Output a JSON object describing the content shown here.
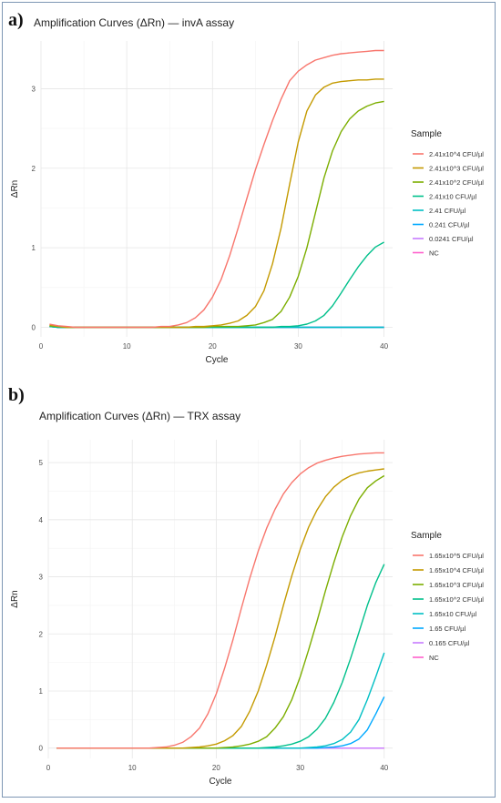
{
  "panels": [
    {
      "letter": "a)"
    },
    {
      "letter": "b)"
    }
  ],
  "chart_data": [
    {
      "type": "line",
      "title": "Amplification Curves (ΔRn) — invA assay",
      "xlabel": "Cycle",
      "ylabel": "ΔRn",
      "xlim": [
        0,
        41
      ],
      "ylim": [
        -0.12,
        3.6
      ],
      "xticks": [
        0,
        10,
        20,
        30,
        40
      ],
      "yticks": [
        0,
        1,
        2,
        3
      ],
      "grid": true,
      "legend_title": "Sample",
      "legend_position": "right",
      "x": [
        1,
        2,
        3,
        4,
        5,
        6,
        7,
        8,
        9,
        10,
        11,
        12,
        13,
        14,
        15,
        16,
        17,
        18,
        19,
        20,
        21,
        22,
        23,
        24,
        25,
        26,
        27,
        28,
        29,
        30,
        31,
        32,
        33,
        34,
        35,
        36,
        37,
        38,
        39,
        40
      ],
      "series": [
        {
          "name": "2.41x10^4 CFU/µl",
          "color": "#F8766D",
          "values": [
            0.04,
            0.02,
            0.01,
            0,
            0,
            0,
            0,
            0,
            0,
            0,
            0,
            0,
            0,
            0.01,
            0.01,
            0.03,
            0.06,
            0.12,
            0.22,
            0.38,
            0.6,
            0.9,
            1.25,
            1.62,
            1.98,
            2.3,
            2.6,
            2.87,
            3.1,
            3.22,
            3.3,
            3.36,
            3.39,
            3.42,
            3.44,
            3.45,
            3.46,
            3.47,
            3.48,
            3.48
          ]
        },
        {
          "name": "2.41x10^3 CFU/µl",
          "color": "#C49A00",
          "values": [
            0.03,
            0.01,
            0,
            0,
            0,
            0,
            0,
            0,
            0,
            0,
            0,
            0,
            0,
            0,
            0,
            0,
            0,
            0.01,
            0.01,
            0.02,
            0.03,
            0.05,
            0.08,
            0.15,
            0.26,
            0.46,
            0.8,
            1.25,
            1.8,
            2.33,
            2.72,
            2.92,
            3.02,
            3.07,
            3.09,
            3.1,
            3.11,
            3.11,
            3.12,
            3.12
          ]
        },
        {
          "name": "2.41x10^2 CFU/µl",
          "color": "#7CAE00",
          "values": [
            0.02,
            0.01,
            0,
            0,
            0,
            0,
            0,
            0,
            0,
            0,
            0,
            0,
            0,
            0,
            0,
            0,
            0,
            0,
            0,
            0.01,
            0.01,
            0.01,
            0.01,
            0.02,
            0.03,
            0.06,
            0.1,
            0.2,
            0.38,
            0.64,
            1.0,
            1.44,
            1.88,
            2.22,
            2.46,
            2.62,
            2.72,
            2.78,
            2.82,
            2.84
          ]
        },
        {
          "name": "2.41x10 CFU/µl",
          "color": "#00C08B",
          "values": [
            0.01,
            0,
            0,
            0,
            0,
            0,
            0,
            0,
            0,
            0,
            0,
            0,
            0,
            0,
            0,
            0,
            0,
            0,
            0,
            0,
            0,
            0,
            0,
            0,
            0,
            0,
            0,
            0.01,
            0.01,
            0.02,
            0.04,
            0.08,
            0.15,
            0.27,
            0.43,
            0.6,
            0.76,
            0.9,
            1.01,
            1.07
          ]
        },
        {
          "name": "2.41 CFU/µl",
          "color": "#00BFC4",
          "values": [
            0.01,
            0,
            0,
            0,
            0,
            0,
            0,
            0,
            0,
            0,
            0,
            0,
            0,
            0,
            0,
            0,
            0,
            0,
            0,
            0,
            0,
            0,
            0,
            0,
            0,
            0,
            0,
            0,
            0,
            0,
            0,
            0,
            0,
            0,
            0,
            0,
            0,
            0,
            0,
            0
          ]
        },
        {
          "name": "0.241 CFU/µl",
          "color": "#00A9FF",
          "values": [
            0.01,
            0,
            0,
            0,
            0,
            0,
            0,
            0,
            0,
            0,
            0,
            0,
            0,
            0,
            0,
            0,
            0,
            0,
            0,
            0,
            0,
            0,
            0,
            0,
            0,
            0,
            0,
            0,
            0,
            0,
            0,
            0,
            0,
            0,
            0,
            0,
            0,
            0,
            0,
            0
          ]
        },
        {
          "name": "0.0241 CFU/µl",
          "color": "#C77CFF",
          "values": [
            0.01,
            0,
            0,
            0,
            0,
            0,
            0,
            0,
            0,
            0,
            0,
            0,
            0,
            0,
            0,
            0,
            0,
            0,
            0,
            0,
            0,
            0,
            0,
            0,
            0,
            0,
            0,
            0,
            0,
            0,
            0,
            0,
            0,
            0,
            0,
            0,
            0,
            0,
            0,
            0
          ]
        },
        {
          "name": "NC",
          "color": "#FF61CC",
          "values": [
            0.01,
            0,
            0,
            0,
            0,
            0,
            0,
            0,
            0,
            0,
            0,
            0,
            0,
            0,
            0,
            0,
            0,
            0,
            0,
            0,
            0,
            0,
            0,
            0,
            0,
            0,
            0,
            0,
            0,
            0,
            0,
            0,
            0,
            0,
            0,
            0,
            0,
            0,
            0,
            0
          ]
        }
      ]
    },
    {
      "type": "line",
      "title": "Amplification Curves (ΔRn) — TRX assay",
      "xlabel": "Cycle",
      "ylabel": "ΔRn",
      "xlim": [
        0,
        41
      ],
      "ylim": [
        -0.18,
        5.4
      ],
      "xticks": [
        0,
        10,
        20,
        30,
        40
      ],
      "yticks": [
        0,
        1,
        2,
        3,
        4,
        5
      ],
      "grid": true,
      "legend_title": "Sample",
      "legend_position": "right",
      "x": [
        1,
        2,
        3,
        4,
        5,
        6,
        7,
        8,
        9,
        10,
        11,
        12,
        13,
        14,
        15,
        16,
        17,
        18,
        19,
        20,
        21,
        22,
        23,
        24,
        25,
        26,
        27,
        28,
        29,
        30,
        31,
        32,
        33,
        34,
        35,
        36,
        37,
        38,
        39,
        40
      ],
      "series": [
        {
          "name": "1.65x10^5 CFU/µl",
          "color": "#F8766D",
          "values": [
            0,
            0,
            0,
            0,
            0,
            0,
            0,
            0,
            0,
            0,
            0,
            0,
            0.01,
            0.02,
            0.05,
            0.1,
            0.2,
            0.35,
            0.6,
            0.95,
            1.4,
            1.9,
            2.45,
            2.98,
            3.45,
            3.85,
            4.18,
            4.45,
            4.65,
            4.8,
            4.91,
            4.99,
            5.04,
            5.08,
            5.11,
            5.13,
            5.15,
            5.16,
            5.17,
            5.17
          ]
        },
        {
          "name": "1.65x10^4 CFU/µl",
          "color": "#C49A00",
          "values": [
            0,
            0,
            0,
            0,
            0,
            0,
            0,
            0,
            0,
            0,
            0,
            0,
            0,
            0,
            0,
            0,
            0.01,
            0.02,
            0.04,
            0.07,
            0.13,
            0.22,
            0.38,
            0.65,
            1.0,
            1.45,
            1.95,
            2.5,
            3.02,
            3.48,
            3.87,
            4.17,
            4.4,
            4.57,
            4.69,
            4.77,
            4.82,
            4.85,
            4.87,
            4.89
          ]
        },
        {
          "name": "1.65x10^3 CFU/µl",
          "color": "#7CAE00",
          "values": [
            0,
            0,
            0,
            0,
            0,
            0,
            0,
            0,
            0,
            0,
            0,
            0,
            0,
            0,
            0,
            0,
            0,
            0,
            0,
            0,
            0.01,
            0.02,
            0.04,
            0.07,
            0.12,
            0.2,
            0.35,
            0.55,
            0.85,
            1.25,
            1.72,
            2.22,
            2.75,
            3.25,
            3.7,
            4.07,
            4.36,
            4.56,
            4.68,
            4.77
          ]
        },
        {
          "name": "1.65x10^2 CFU/µl",
          "color": "#00C08B",
          "values": [
            0,
            0,
            0,
            0,
            0,
            0,
            0,
            0,
            0,
            0,
            0,
            0,
            0,
            0,
            0,
            0,
            0,
            0,
            0,
            0,
            0,
            0,
            0,
            0,
            0,
            0.01,
            0.02,
            0.04,
            0.07,
            0.12,
            0.2,
            0.33,
            0.52,
            0.8,
            1.15,
            1.57,
            2.03,
            2.5,
            2.9,
            3.22
          ]
        },
        {
          "name": "1.65x10 CFU/µl",
          "color": "#00BFC4",
          "values": [
            0,
            0,
            0,
            0,
            0,
            0,
            0,
            0,
            0,
            0,
            0,
            0,
            0,
            0,
            0,
            0,
            0,
            0,
            0,
            0,
            0,
            0,
            0,
            0,
            0,
            0,
            0,
            0,
            0,
            0,
            0.01,
            0.02,
            0.04,
            0.08,
            0.15,
            0.28,
            0.5,
            0.85,
            1.25,
            1.67
          ]
        },
        {
          "name": "1.65 CFU/µl",
          "color": "#00A9FF",
          "values": [
            0,
            0,
            0,
            0,
            0,
            0,
            0,
            0,
            0,
            0,
            0,
            0,
            0,
            0,
            0,
            0,
            0,
            0,
            0,
            0,
            0,
            0,
            0,
            0,
            0,
            0,
            0,
            0,
            0,
            0,
            0,
            0,
            0.01,
            0.02,
            0.04,
            0.08,
            0.16,
            0.32,
            0.6,
            0.9
          ]
        },
        {
          "name": "0.165 CFU/µl",
          "color": "#C77CFF",
          "values": [
            0,
            0,
            0,
            0,
            0,
            0,
            0,
            0,
            0,
            0,
            0,
            0,
            0,
            0,
            0,
            0,
            0,
            0,
            0,
            0,
            0,
            0,
            0,
            0,
            0,
            0,
            0,
            0,
            0,
            0,
            0,
            0,
            0,
            0,
            0,
            0,
            0,
            0,
            0,
            0
          ]
        },
        {
          "name": "NC",
          "color": "#FF61CC",
          "values": [
            0,
            0,
            0,
            0,
            0,
            0,
            0,
            0,
            0,
            0,
            0,
            0,
            0,
            0,
            0,
            0,
            0,
            0,
            0,
            0,
            0,
            0,
            0,
            0,
            0,
            0,
            0,
            0,
            0,
            0,
            0,
            0,
            0,
            0,
            0,
            0,
            0,
            0,
            0,
            0
          ]
        }
      ]
    }
  ]
}
